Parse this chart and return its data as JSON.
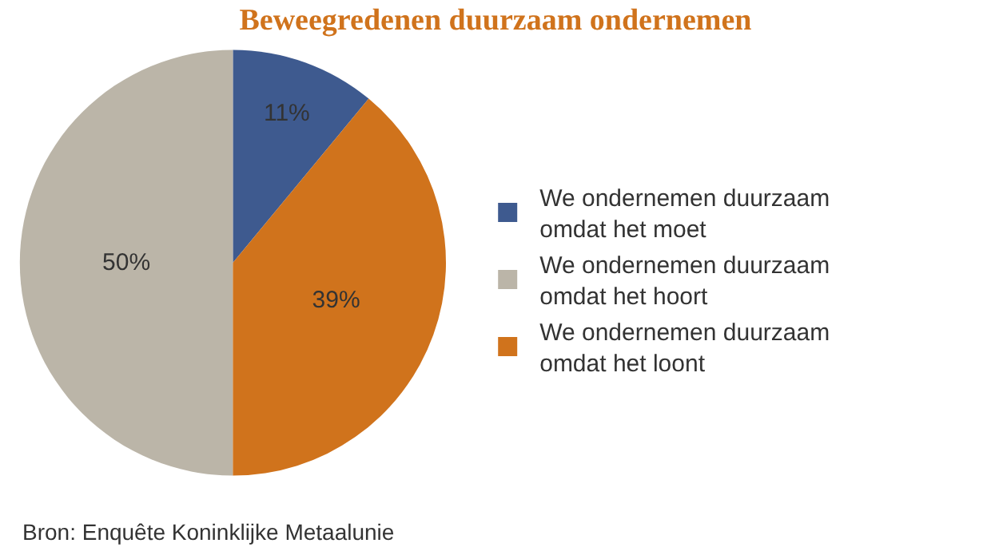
{
  "chart_data": {
    "type": "pie",
    "title": "Beweegredenen duurzaam ondernemen",
    "categories": [
      "We ondernemen duurzaam omdat het moet",
      "We ondernemen duurzaam omdat het hoort",
      "We ondernemen duurzaam omdat het loont"
    ],
    "values": [
      11,
      50,
      39
    ],
    "colors": [
      "#3e5a8f",
      "#bbb5a8",
      "#d0731c"
    ],
    "value_labels": [
      "11%",
      "50%",
      "39%"
    ],
    "legend": "right",
    "annotations": [
      "Bron: Enquête Koninklijke Metaalunie"
    ]
  }
}
